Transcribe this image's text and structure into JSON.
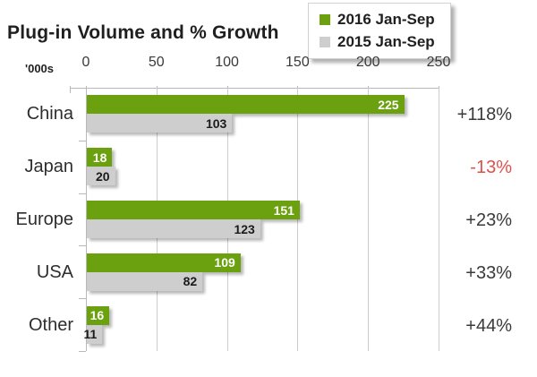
{
  "title": "Plug-in Volume and % Growth",
  "axis_unit_label": "'000s",
  "legend": {
    "position": "top-right",
    "items": [
      {
        "label": "2016 Jan-Sep",
        "color": "#6ba00f"
      },
      {
        "label": "2015 Jan-Sep",
        "color": "#cdcecd"
      }
    ]
  },
  "chart_data": {
    "type": "bar",
    "orientation": "horizontal",
    "title": "Plug-in Volume and % Growth",
    "xlabel": "'000s",
    "ylabel": "",
    "xlim": [
      0,
      250
    ],
    "x_ticks": [
      0,
      50,
      100,
      150,
      200,
      250
    ],
    "grid": true,
    "legend_position": "top-right",
    "categories": [
      "China",
      "Japan",
      "Europe",
      "USA",
      "Other"
    ],
    "series": [
      {
        "name": "2016 Jan-Sep",
        "color": "#6ba00f",
        "label_color": "#ffffff",
        "values": [
          225,
          18,
          151,
          109,
          16
        ]
      },
      {
        "name": "2015 Jan-Sep",
        "color": "#cdcecd",
        "label_color": "#1b1b1b",
        "values": [
          103,
          20,
          123,
          82,
          11
        ]
      }
    ],
    "growth_labels": [
      "+118%",
      "-13%",
      "+23%",
      "+33%",
      "+44%"
    ]
  },
  "colors": {
    "bar_green": "#6ba00f",
    "bar_gray": "#cdcecd",
    "growth_positive_text": "#3a3a3a",
    "growth_negative_text": "#e0504a",
    "axis_line": "#b9b9b9",
    "grid_line": "#cccccc",
    "tick_text": "#3a3a3a"
  }
}
